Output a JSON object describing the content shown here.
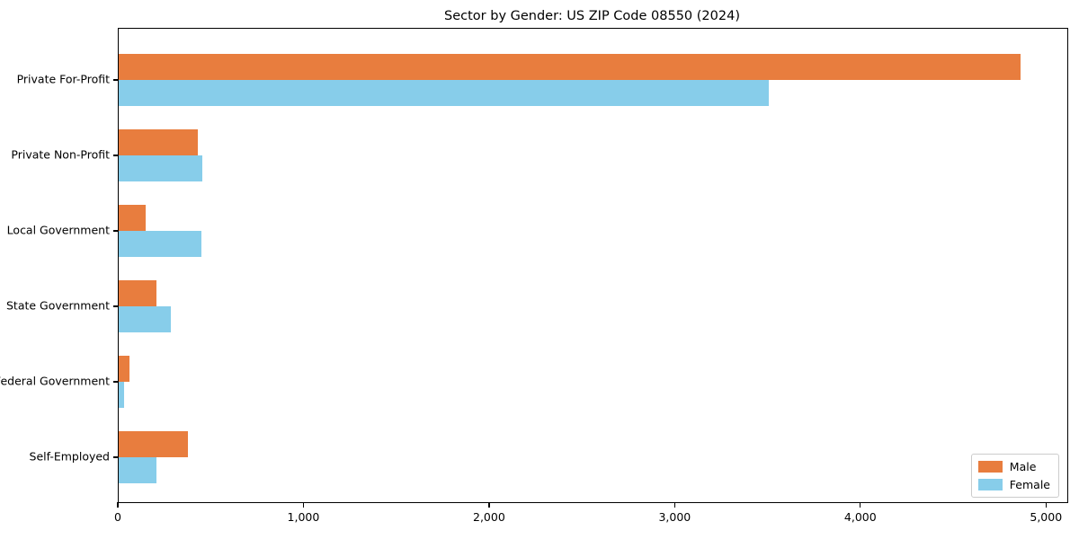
{
  "chart_data": {
    "type": "bar",
    "orientation": "horizontal",
    "title": "Sector by Gender: US ZIP Code 08550 (2024)",
    "categories": [
      "Private For-Profit",
      "Private Non-Profit",
      "Local Government",
      "State Government",
      "Federal Government",
      "Self-Employed"
    ],
    "series": [
      {
        "name": "Male",
        "color": "#e87d3e",
        "values": [
          4860,
          425,
          145,
          205,
          60,
          375
        ]
      },
      {
        "name": "Female",
        "color": "#87cdea",
        "values": [
          3500,
          450,
          445,
          280,
          30,
          205
        ]
      }
    ],
    "xlabel": "",
    "ylabel": "",
    "xlim": [
      0,
      5110
    ],
    "xticks": [
      0,
      1000,
      2000,
      3000,
      4000,
      5000
    ],
    "xtick_labels": [
      "0",
      "1,000",
      "2,000",
      "3,000",
      "4,000",
      "5,000"
    ],
    "grid": false,
    "legend": {
      "position": "lower right",
      "entries": [
        "Male",
        "Female"
      ]
    }
  }
}
